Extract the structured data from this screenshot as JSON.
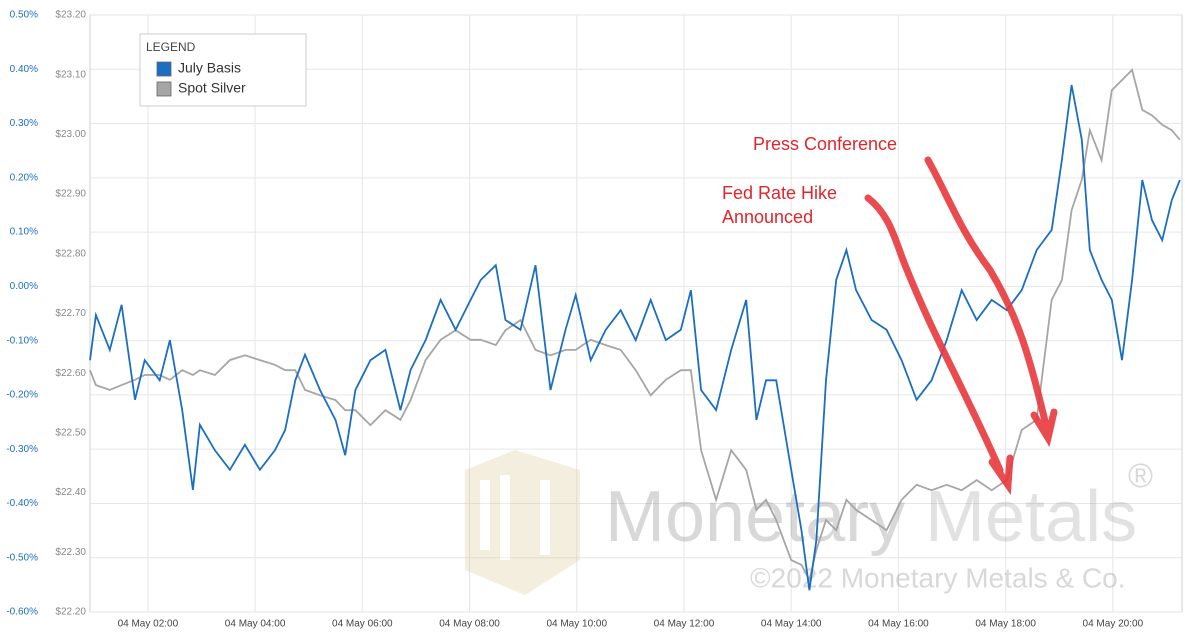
{
  "chart_data": {
    "type": "line",
    "annotations": [
      "Press Conference",
      "Fed Rate Hike",
      "Announced"
    ],
    "watermark": [
      "Monetary",
      "Metals",
      "®",
      "©2022 Monetary Metals & Co."
    ],
    "legend_title": "LEGEND",
    "legend_position": "upper left",
    "grid": true,
    "xlim": [
      0.92,
      21.29
    ],
    "xticks": [
      {
        "value": 2,
        "label": "04 May 02:00"
      },
      {
        "value": 4,
        "label": "04 May 04:00"
      },
      {
        "value": 6,
        "label": "04 May 06:00"
      },
      {
        "value": 8,
        "label": "04 May 08:00"
      },
      {
        "value": 10,
        "label": "04 May 10:00"
      },
      {
        "value": 12,
        "label": "04 May 12:00"
      },
      {
        "value": 14,
        "label": "04 May 14:00"
      },
      {
        "value": 16,
        "label": "04 May 16:00"
      },
      {
        "value": 18,
        "label": "04 May 18:00"
      },
      {
        "value": 20,
        "label": "04 May 20:00"
      }
    ],
    "ylim": [
      -0.6,
      0.5
    ],
    "yticks": [
      {
        "value": 0.5,
        "label": "0.50%"
      },
      {
        "value": 0.4,
        "label": "0.40%"
      },
      {
        "value": 0.3,
        "label": "0.30%"
      },
      {
        "value": 0.2,
        "label": "0.20%"
      },
      {
        "value": 0.1,
        "label": "0.10%"
      },
      {
        "value": 0,
        "label": "0.00%"
      },
      {
        "value": -0.1,
        "label": "-0.10%"
      },
      {
        "value": -0.2,
        "label": "-0.20%"
      },
      {
        "value": -0.3,
        "label": "-0.30%"
      },
      {
        "value": -0.4,
        "label": "-0.40%"
      },
      {
        "value": -0.5,
        "label": "-0.50%"
      },
      {
        "value": -0.6,
        "label": "-0.60%"
      }
    ],
    "y2lim": [
      22.2,
      23.2
    ],
    "y2ticks": [
      {
        "value": 23.2,
        "label": "$23.20"
      },
      {
        "value": 23.1,
        "label": "$23.10"
      },
      {
        "value": 23.0,
        "label": "$23.00"
      },
      {
        "value": 22.9,
        "label": "$22.90"
      },
      {
        "value": 22.8,
        "label": "$22.80"
      },
      {
        "value": 22.7,
        "label": "$22.70"
      },
      {
        "value": 22.6,
        "label": "$22.60"
      },
      {
        "value": 22.5,
        "label": "$22.50"
      },
      {
        "value": 22.4,
        "label": "$22.40"
      },
      {
        "value": 22.3,
        "label": "$22.30"
      },
      {
        "value": 22.2,
        "label": "$22.20"
      }
    ],
    "x": [
      0.92,
      1.03,
      1.29,
      1.51,
      1.76,
      1.94,
      2.22,
      2.41,
      2.64,
      2.84,
      2.97,
      3.25,
      3.53,
      3.81,
      4.09,
      4.37,
      4.56,
      4.75,
      4.93,
      5.21,
      5.5,
      5.68,
      5.87,
      6.15,
      6.43,
      6.71,
      6.9,
      7.18,
      7.46,
      7.74,
      8.02,
      8.21,
      8.49,
      8.67,
      8.95,
      9.23,
      9.51,
      9.79,
      9.98,
      10.26,
      10.54,
      10.82,
      11.1,
      11.38,
      11.66,
      11.94,
      12.13,
      12.32,
      12.6,
      12.88,
      13.16,
      13.35,
      13.53,
      13.72,
      14.0,
      14.19,
      14.34,
      14.47,
      14.65,
      14.84,
      15.03,
      15.21,
      15.5,
      15.78,
      16.06,
      16.34,
      16.62,
      16.9,
      17.18,
      17.46,
      17.74,
      18.02,
      18.3,
      18.58,
      18.86,
      19.05,
      19.23,
      19.42,
      19.57,
      19.79,
      19.98,
      20.17,
      20.36,
      20.55,
      20.73,
      20.92,
      21.1,
      21.25
    ],
    "series": [
      {
        "name": "Spot Silver",
        "color": "#a6a6a6",
        "axis": "y2",
        "values": [
          22.605,
          22.58,
          22.572,
          22.58,
          22.589,
          22.597,
          22.597,
          22.589,
          22.605,
          22.597,
          22.605,
          22.597,
          22.622,
          22.63,
          22.622,
          22.614,
          22.605,
          22.605,
          22.572,
          22.563,
          22.555,
          22.538,
          22.538,
          22.513,
          22.538,
          22.522,
          22.555,
          22.622,
          22.656,
          22.672,
          22.656,
          22.656,
          22.647,
          22.672,
          22.689,
          22.639,
          22.63,
          22.639,
          22.639,
          22.656,
          22.647,
          22.639,
          22.605,
          22.563,
          22.589,
          22.605,
          22.605,
          22.471,
          22.388,
          22.471,
          22.438,
          22.371,
          22.388,
          22.354,
          22.287,
          22.279,
          22.254,
          22.304,
          22.354,
          22.337,
          22.388,
          22.371,
          22.354,
          22.337,
          22.388,
          22.413,
          22.404,
          22.413,
          22.404,
          22.421,
          22.404,
          22.421,
          22.505,
          22.522,
          22.723,
          22.756,
          22.873,
          22.924,
          23.007,
          22.957,
          23.074,
          23.091,
          23.108,
          23.041,
          23.032,
          23.016,
          23.007,
          22.991
        ]
      },
      {
        "name": "July Basis",
        "color": "#1a6fc2",
        "values": [
          -0.136,
          -0.053,
          -0.117,
          -0.034,
          -0.209,
          -0.136,
          -0.173,
          -0.099,
          -0.228,
          -0.375,
          -0.255,
          -0.302,
          -0.338,
          -0.292,
          -0.338,
          -0.302,
          -0.265,
          -0.173,
          -0.126,
          -0.191,
          -0.246,
          -0.311,
          -0.191,
          -0.136,
          -0.117,
          -0.228,
          -0.154,
          -0.099,
          -0.025,
          -0.08,
          -0.025,
          0.012,
          0.039,
          -0.062,
          -0.08,
          0.039,
          -0.191,
          -0.08,
          -0.016,
          -0.136,
          -0.08,
          -0.044,
          -0.099,
          -0.025,
          -0.099,
          -0.08,
          -0.007,
          -0.191,
          -0.228,
          -0.117,
          -0.025,
          -0.246,
          -0.173,
          -0.173,
          -0.338,
          -0.449,
          -0.56,
          -0.467,
          -0.173,
          0.012,
          0.067,
          -0.007,
          -0.062,
          -0.08,
          -0.136,
          -0.209,
          -0.173,
          -0.099,
          -0.007,
          -0.062,
          -0.025,
          -0.044,
          -0.007,
          0.067,
          0.104,
          0.233,
          0.371,
          0.27,
          0.067,
          0.012,
          -0.025,
          -0.136,
          0.012,
          0.196,
          0.122,
          0.085,
          0.159,
          0.196
        ]
      }
    ]
  }
}
